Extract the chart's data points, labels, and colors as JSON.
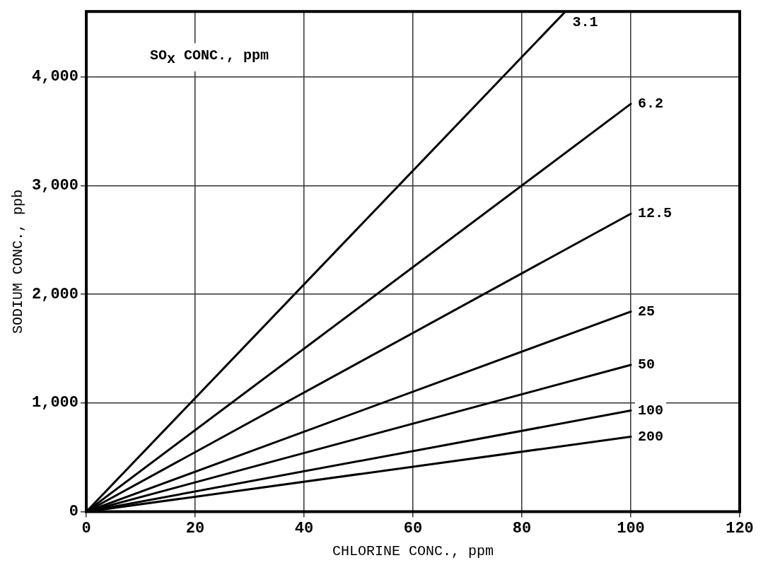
{
  "chart_data": {
    "type": "line",
    "xlabel": "CHLORINE CONC., ppm",
    "ylabel": "SODIUM CONC., ppb",
    "annotations": [
      "SO$_{x}$ CONC., ppm"
    ],
    "series": [
      {
        "name": "3.1",
        "color": "#000000",
        "x": [
          0,
          88
        ],
        "values": [
          0,
          4600
        ]
      },
      {
        "name": "6.2",
        "color": "#000000",
        "x": [
          0,
          100
        ],
        "values": [
          0,
          3750
        ]
      },
      {
        "name": "12.5",
        "color": "#000000",
        "x": [
          0,
          100
        ],
        "values": [
          0,
          2740
        ]
      },
      {
        "name": "25",
        "color": "#000000",
        "x": [
          0,
          100
        ],
        "values": [
          0,
          1840
        ]
      },
      {
        "name": "50",
        "color": "#000000",
        "x": [
          0,
          100
        ],
        "values": [
          0,
          1350
        ]
      },
      {
        "name": "100",
        "color": "#000000",
        "x": [
          0,
          100
        ],
        "values": [
          0,
          930
        ]
      },
      {
        "name": "200",
        "color": "#000000",
        "x": [
          0,
          100
        ],
        "values": [
          0,
          690
        ]
      }
    ],
    "xlim": [
      0,
      120
    ],
    "xticks": [
      0,
      20,
      40,
      60,
      80,
      100,
      120
    ],
    "ylim": [
      0,
      4600
    ],
    "yticks": [
      0,
      {
        "value": 1000,
        "label": "1,000"
      },
      {
        "value": 2000,
        "label": "2,000"
      },
      {
        "value": 3000,
        "label": "3,000"
      },
      {
        "value": 4000,
        "label": "4,000"
      }
    ],
    "grid": true,
    "legend": false,
    "marker": "none",
    "line_style": "solid"
  }
}
